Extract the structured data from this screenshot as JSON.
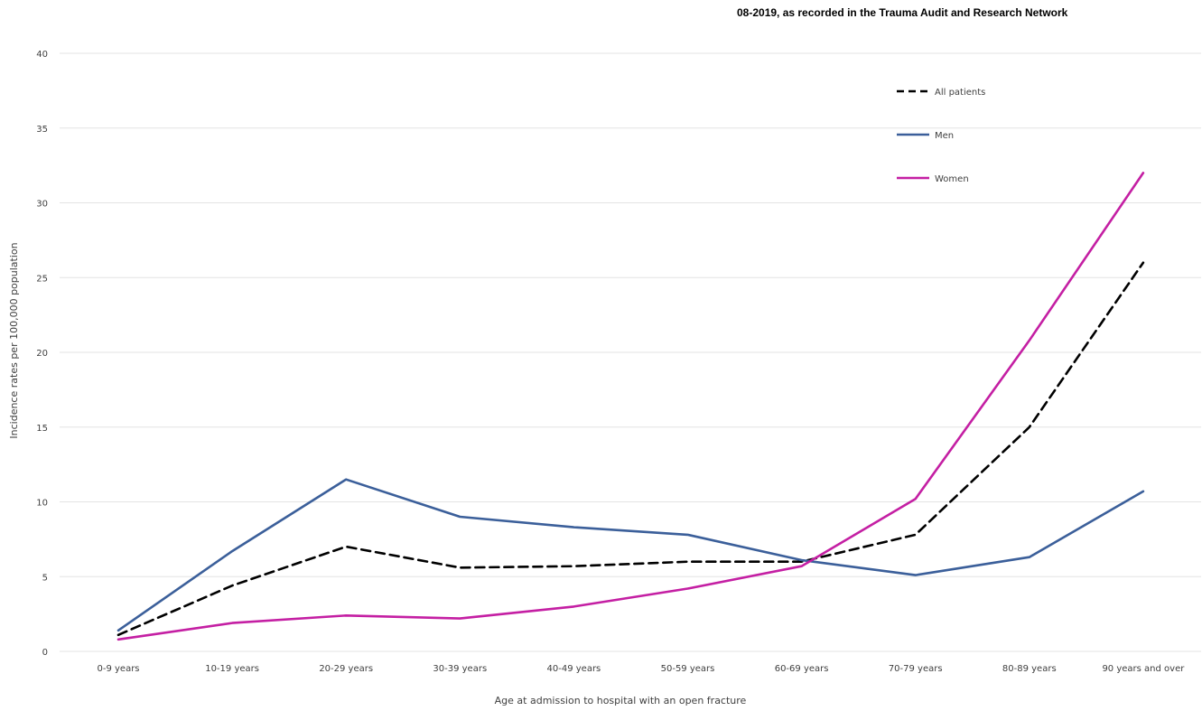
{
  "chart_data": {
    "type": "line",
    "title": "08-2019, as recorded in the Trauma Audit and Research Network",
    "xlabel": "Age at admission to hospital with an open fracture",
    "ylabel": "Incidence rates per 100,000 population",
    "categories": [
      "0-9 years",
      "10-19 years",
      "20-29 years",
      "30-39 years",
      "40-49 years",
      "50-59 years",
      "60-69 years",
      "70-79 years",
      "80-89 years",
      "90 years and over"
    ],
    "ylim": [
      0,
      40
    ],
    "yticks": [
      0,
      5,
      10,
      15,
      20,
      25,
      30,
      35,
      40
    ],
    "grid": true,
    "legend_position": "top-right",
    "series": [
      {
        "name": "All patients",
        "color": "#000000",
        "dash": "dashed",
        "values": [
          1.1,
          4.4,
          7.0,
          5.6,
          5.7,
          6.0,
          6.0,
          7.8,
          15.0,
          26.0
        ]
      },
      {
        "name": "Men",
        "color": "#3b5f9a",
        "dash": "solid",
        "values": [
          1.4,
          6.7,
          11.5,
          9.0,
          8.3,
          7.8,
          6.1,
          5.1,
          6.3,
          10.7
        ]
      },
      {
        "name": "Women",
        "color": "#c41fa3",
        "dash": "solid",
        "values": [
          0.8,
          1.9,
          2.4,
          2.2,
          3.0,
          4.2,
          5.7,
          10.2,
          20.8,
          32.0
        ]
      }
    ]
  }
}
